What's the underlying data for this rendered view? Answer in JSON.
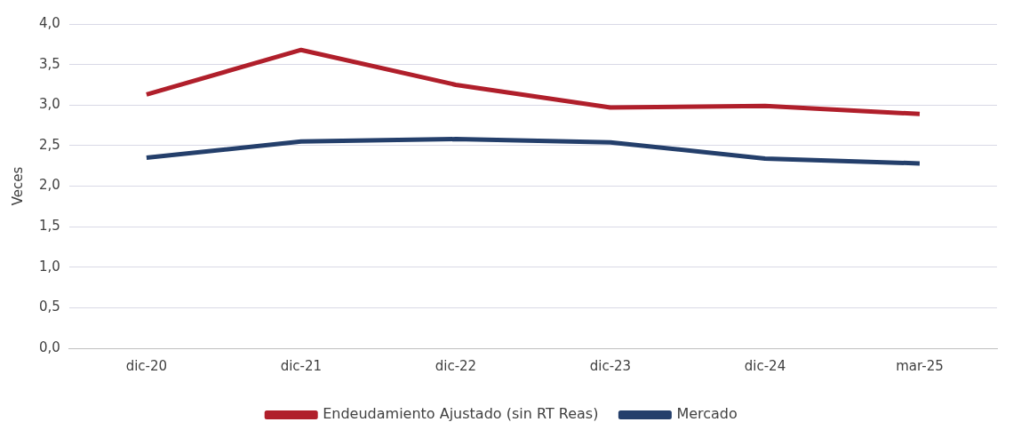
{
  "chart_data": {
    "type": "line",
    "ylabel": "Veces",
    "categories": [
      "dic-20",
      "dic-21",
      "dic-22",
      "dic-23",
      "dic-24",
      "mar-25"
    ],
    "series": [
      {
        "name": "Endeudamiento Ajustado (sin RT Reas)",
        "color": "#b01f2b",
        "values": [
          3.13,
          3.68,
          3.25,
          2.97,
          2.99,
          2.89
        ]
      },
      {
        "name": "Mercado",
        "color": "#243f6b",
        "values": [
          2.35,
          2.55,
          2.58,
          2.54,
          2.34,
          2.28
        ]
      }
    ],
    "ylim": [
      0,
      4
    ],
    "yticks": [
      {
        "value": 0,
        "label": "0,0"
      },
      {
        "value": 0.5,
        "label": "0,5"
      },
      {
        "value": 1,
        "label": "1,0"
      },
      {
        "value": 1.5,
        "label": "1,5"
      },
      {
        "value": 2,
        "label": "2,0"
      },
      {
        "value": 2.5,
        "label": "2,5"
      },
      {
        "value": 3,
        "label": "3,0"
      },
      {
        "value": 3.5,
        "label": "3,5"
      },
      {
        "value": 4,
        "label": "4,0"
      }
    ],
    "grid": "y",
    "legend": "bottom",
    "marker": "none",
    "line_style": "solid"
  }
}
